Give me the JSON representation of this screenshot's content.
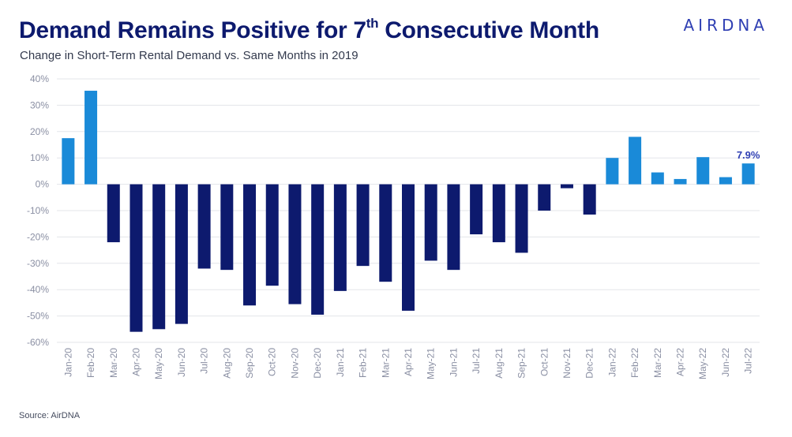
{
  "header": {
    "title_main": "Demand Remains Positive for 7",
    "title_sup": "th",
    "title_end": " Consecutive Month",
    "subtitle": "Change in Short-Term Rental Demand vs. Same Months in 2019",
    "logo": "AIRDNA"
  },
  "footer": {
    "source": "Source: AirDNA"
  },
  "colors": {
    "positive": "#1a8ad8",
    "negative": "#0d1a6e",
    "grid": "#e3e5ea",
    "label": "#2f3fb3"
  },
  "chart_data": {
    "type": "bar",
    "title": "Demand Remains Positive for 7th Consecutive Month",
    "subtitle": "Change in Short-Term Rental Demand vs. Same Months in 2019",
    "xlabel": "",
    "ylabel": "",
    "ylim": [
      -60,
      40
    ],
    "yticks": [
      40,
      30,
      20,
      10,
      0,
      -10,
      -20,
      -30,
      -40,
      -50,
      -60
    ],
    "ytick_labels": [
      "40%",
      "30%",
      "20%",
      "10%",
      "0%",
      "-10%",
      "-20%",
      "-30%",
      "-40%",
      "-50%",
      "-60%"
    ],
    "grid": true,
    "legend": "none",
    "categories": [
      "Jan-20",
      "Feb-20",
      "Mar-20",
      "Apr-20",
      "May-20",
      "Jun-20",
      "Jul-20",
      "Aug-20",
      "Sep-20",
      "Oct-20",
      "Nov-20",
      "Dec-20",
      "Jan-21",
      "Feb-21",
      "Mar-21",
      "Apr-21",
      "May-21",
      "Jun-21",
      "Jul-21",
      "Aug-21",
      "Sep-21",
      "Oct-21",
      "Nov-21",
      "Dec-21",
      "Jan-22",
      "Feb-22",
      "Mar-22",
      "Apr-22",
      "May-22",
      "Jun-22",
      "Jul-22"
    ],
    "values": [
      17.5,
      35.5,
      -22,
      -56,
      -55,
      -53,
      -32,
      -32.5,
      -46,
      -38.5,
      -45.5,
      -49.5,
      -40.5,
      -31,
      -37,
      -48,
      -29,
      -32.5,
      -19,
      -22,
      -26,
      -10,
      -1.5,
      -11.5,
      10,
      18,
      4.5,
      2,
      10.3,
      2.7,
      7.9
    ],
    "annotations": [
      {
        "category": "Jul-22",
        "text": "7.9%"
      }
    ]
  }
}
